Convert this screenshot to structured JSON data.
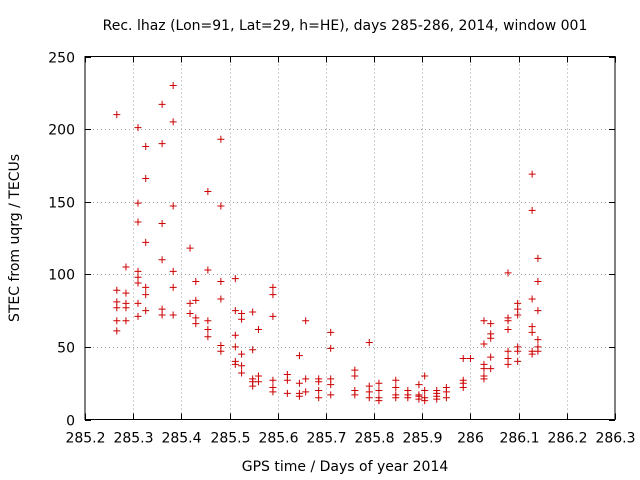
{
  "chart_data": {
    "type": "scatter",
    "title": "Rec. lhaz (Lon=91, Lat=29, h=HE), days 285-286, 2014, window 001",
    "xlabel": "GPS time / Days of year 2014",
    "ylabel": "STEC from uqrg / TECUs",
    "xlim": [
      285.2,
      286.3
    ],
    "ylim": [
      0,
      250
    ],
    "xticks": [
      "285.2",
      "285.3",
      "285.4",
      "285.5",
      "285.6",
      "285.7",
      "285.8",
      "285.9",
      "286",
      "286.1",
      "286.2",
      "286.3"
    ],
    "xtick_values": [
      285.2,
      285.3,
      285.4,
      285.5,
      285.6,
      285.7,
      285.8,
      285.9,
      286.0,
      286.1,
      286.2,
      286.3
    ],
    "yticks": [
      "0",
      "50",
      "100",
      "150",
      "200",
      "250"
    ],
    "ytick_values": [
      0,
      50,
      100,
      150,
      200,
      250
    ],
    "grid": true,
    "marker": "+",
    "color": "#cc0000",
    "points": [
      [
        285.266,
        210
      ],
      [
        285.266,
        89
      ],
      [
        285.266,
        81
      ],
      [
        285.266,
        77
      ],
      [
        285.266,
        68
      ],
      [
        285.266,
        61
      ],
      [
        285.285,
        105
      ],
      [
        285.285,
        87
      ],
      [
        285.285,
        80
      ],
      [
        285.285,
        77
      ],
      [
        285.285,
        68
      ],
      [
        285.31,
        201
      ],
      [
        285.31,
        149
      ],
      [
        285.31,
        136
      ],
      [
        285.31,
        102
      ],
      [
        285.31,
        98
      ],
      [
        285.31,
        94
      ],
      [
        285.31,
        80
      ],
      [
        285.31,
        71
      ],
      [
        285.326,
        188
      ],
      [
        285.326,
        166
      ],
      [
        285.326,
        122
      ],
      [
        285.326,
        91
      ],
      [
        285.326,
        86
      ],
      [
        285.326,
        75
      ],
      [
        285.36,
        217
      ],
      [
        285.36,
        190
      ],
      [
        285.36,
        135
      ],
      [
        285.36,
        110
      ],
      [
        285.36,
        76
      ],
      [
        285.36,
        72
      ],
      [
        285.383,
        230
      ],
      [
        285.383,
        205
      ],
      [
        285.383,
        147
      ],
      [
        285.383,
        102
      ],
      [
        285.383,
        91
      ],
      [
        285.383,
        72
      ],
      [
        285.418,
        118
      ],
      [
        285.418,
        80
      ],
      [
        285.418,
        73
      ],
      [
        285.43,
        95
      ],
      [
        285.43,
        82
      ],
      [
        285.43,
        70
      ],
      [
        285.43,
        66
      ],
      [
        285.455,
        157
      ],
      [
        285.455,
        103
      ],
      [
        285.455,
        68
      ],
      [
        285.455,
        62
      ],
      [
        285.455,
        57
      ],
      [
        285.482,
        193
      ],
      [
        285.482,
        147
      ],
      [
        285.482,
        95
      ],
      [
        285.482,
        83
      ],
      [
        285.482,
        51
      ],
      [
        285.482,
        47
      ],
      [
        285.512,
        97
      ],
      [
        285.512,
        75
      ],
      [
        285.512,
        58
      ],
      [
        285.512,
        50
      ],
      [
        285.512,
        40
      ],
      [
        285.512,
        38
      ],
      [
        285.525,
        73
      ],
      [
        285.525,
        69
      ],
      [
        285.525,
        45
      ],
      [
        285.525,
        37
      ],
      [
        285.525,
        32
      ],
      [
        285.548,
        74
      ],
      [
        285.548,
        48
      ],
      [
        285.548,
        28
      ],
      [
        285.548,
        26
      ],
      [
        285.548,
        23
      ],
      [
        285.56,
        62
      ],
      [
        285.56,
        30
      ],
      [
        285.56,
        26
      ],
      [
        285.59,
        91
      ],
      [
        285.59,
        86
      ],
      [
        285.59,
        71
      ],
      [
        285.59,
        27
      ],
      [
        285.59,
        22
      ],
      [
        285.59,
        19
      ],
      [
        285.62,
        31
      ],
      [
        285.62,
        27
      ],
      [
        285.62,
        18
      ],
      [
        285.645,
        44
      ],
      [
        285.645,
        25
      ],
      [
        285.645,
        18
      ],
      [
        285.645,
        16
      ],
      [
        285.658,
        68
      ],
      [
        285.658,
        28
      ],
      [
        285.658,
        19
      ],
      [
        285.685,
        28
      ],
      [
        285.685,
        26
      ],
      [
        285.685,
        20
      ],
      [
        285.685,
        15
      ],
      [
        285.71,
        60
      ],
      [
        285.71,
        49
      ],
      [
        285.71,
        28
      ],
      [
        285.71,
        24
      ],
      [
        285.71,
        17
      ],
      [
        285.76,
        34
      ],
      [
        285.76,
        30
      ],
      [
        285.76,
        20
      ],
      [
        285.76,
        17
      ],
      [
        285.79,
        53
      ],
      [
        285.79,
        23
      ],
      [
        285.79,
        19
      ],
      [
        285.79,
        15
      ],
      [
        285.81,
        25
      ],
      [
        285.81,
        20
      ],
      [
        285.81,
        15
      ],
      [
        285.81,
        13
      ],
      [
        285.845,
        27
      ],
      [
        285.845,
        22
      ],
      [
        285.845,
        17
      ],
      [
        285.845,
        15
      ],
      [
        285.87,
        20
      ],
      [
        285.87,
        17
      ],
      [
        285.87,
        15
      ],
      [
        285.893,
        24
      ],
      [
        285.893,
        17
      ],
      [
        285.893,
        16
      ],
      [
        285.893,
        14
      ],
      [
        285.905,
        30
      ],
      [
        285.905,
        20
      ],
      [
        285.905,
        15
      ],
      [
        285.905,
        13
      ],
      [
        285.93,
        20
      ],
      [
        285.93,
        18
      ],
      [
        285.93,
        16
      ],
      [
        285.93,
        14
      ],
      [
        285.95,
        22
      ],
      [
        285.95,
        19
      ],
      [
        285.95,
        15
      ],
      [
        285.985,
        42
      ],
      [
        285.985,
        27
      ],
      [
        285.985,
        25
      ],
      [
        285.985,
        22
      ],
      [
        286.0,
        42
      ],
      [
        286.028,
        68
      ],
      [
        286.028,
        52
      ],
      [
        286.028,
        38
      ],
      [
        286.028,
        35
      ],
      [
        286.028,
        30
      ],
      [
        286.028,
        28
      ],
      [
        286.042,
        66
      ],
      [
        286.042,
        59
      ],
      [
        286.042,
        56
      ],
      [
        286.042,
        43
      ],
      [
        286.042,
        35
      ],
      [
        286.078,
        101
      ],
      [
        286.078,
        70
      ],
      [
        286.078,
        68
      ],
      [
        286.078,
        62
      ],
      [
        286.078,
        47
      ],
      [
        286.078,
        42
      ],
      [
        286.078,
        38
      ],
      [
        286.098,
        80
      ],
      [
        286.098,
        76
      ],
      [
        286.098,
        72
      ],
      [
        286.098,
        50
      ],
      [
        286.098,
        47
      ],
      [
        286.098,
        40
      ],
      [
        286.128,
        169
      ],
      [
        286.128,
        144
      ],
      [
        286.128,
        83
      ],
      [
        286.128,
        64
      ],
      [
        286.128,
        60
      ],
      [
        286.128,
        47
      ],
      [
        286.128,
        45
      ],
      [
        286.14,
        111
      ],
      [
        286.14,
        95
      ],
      [
        286.14,
        75
      ],
      [
        286.14,
        55
      ],
      [
        286.14,
        50
      ],
      [
        286.14,
        47
      ]
    ]
  }
}
